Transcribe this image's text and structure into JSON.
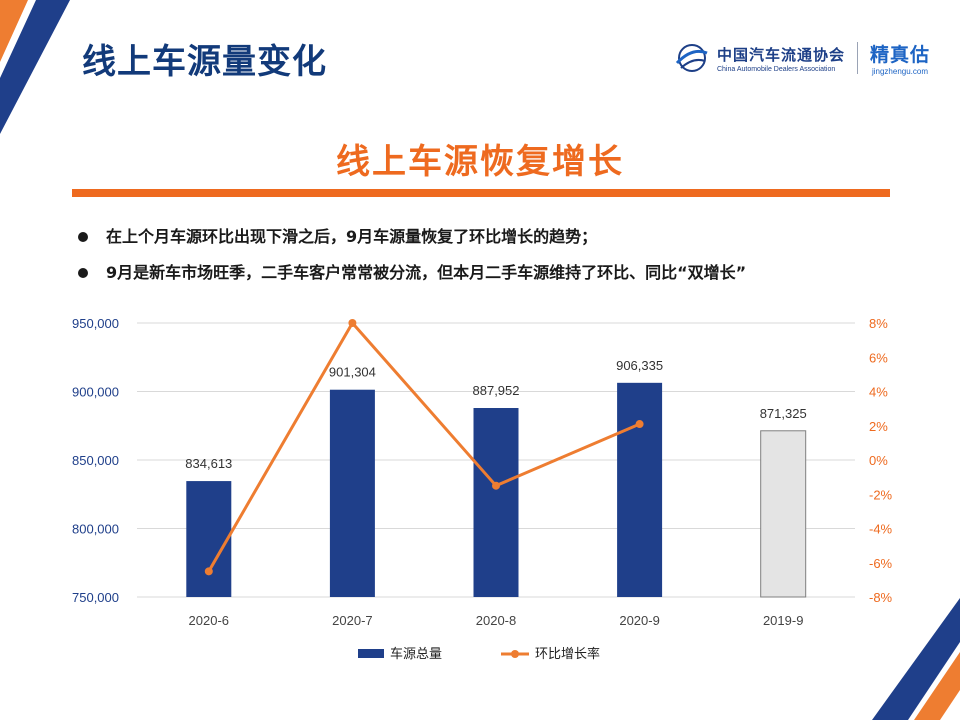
{
  "header": {
    "title": "线上车源量变化",
    "logo_cada_cn": "中国汽车流通协会",
    "logo_cada_en": "China Automobile Dealers Association",
    "logo_jzg_cn": "精真估",
    "logo_jzg_url": "jingzhengu.com"
  },
  "headline": "线上车源恢复增长",
  "bullets": [
    "在上个月车源环比出现下滑之后，9月车源量恢复了环比增长的趋势；",
    "9月是新车市场旺季，二手车客户常常被分流，但本月二手车源维持了环比、同比“双增长”"
  ],
  "colors": {
    "title": "#123a7a",
    "accent": "#ee6a1f",
    "bar": "#1f3f8a",
    "bar_comparison": "#e4e4e4",
    "line": "#ee7d31"
  },
  "chart_data": {
    "type": "bar",
    "categories": [
      "2020-6",
      "2020-7",
      "2020-8",
      "2020-9",
      "2019-9"
    ],
    "series": [
      {
        "name": "车源总量",
        "type": "bar",
        "axis": "left",
        "values": [
          834613,
          901304,
          887952,
          906335,
          871325
        ],
        "labels": [
          "834,613",
          "901,304",
          "887,952",
          "906,335",
          "871,325"
        ]
      },
      {
        "name": "环比增长率",
        "type": "line",
        "axis": "right",
        "values": [
          -6.5,
          8.0,
          -1.5,
          2.1,
          null
        ]
      }
    ],
    "left_axis": {
      "min": 750000,
      "max": 950000,
      "ticks": [
        750000,
        800000,
        850000,
        900000,
        950000
      ],
      "tick_labels": [
        "750,000",
        "800,000",
        "850,000",
        "900,000",
        "950,000"
      ]
    },
    "right_axis": {
      "min": -8,
      "max": 8,
      "ticks": [
        -8,
        -6,
        -4,
        -2,
        0,
        2,
        4,
        6,
        8
      ],
      "tick_labels": [
        "-8%",
        "-6%",
        "-4%",
        "-2%",
        "0%",
        "2%",
        "4%",
        "6%",
        "8%"
      ]
    },
    "grid": true,
    "legend": "bottom"
  }
}
